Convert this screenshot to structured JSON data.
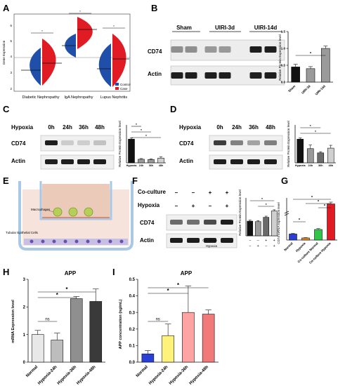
{
  "panels": {
    "A": {
      "letter": "A",
      "ylabel": "Gene Expression",
      "yticks": [
        "2",
        "3",
        "4",
        "5",
        "6"
      ],
      "groups": [
        "Diabetic Nephropathy",
        "IgA Nephropathy",
        "Lupus Nephritis"
      ],
      "legend": [
        "Control",
        "Case"
      ],
      "sig": "*",
      "colors": {
        "control": "#1f4fa8",
        "case": "#e01b24"
      }
    },
    "B": {
      "letter": "B",
      "lanes": [
        "Sham",
        "UIRI-3d",
        "UIRI-14d"
      ],
      "rows": [
        "CD74",
        "Actin"
      ],
      "ylabel": "Relative Protein Expression level",
      "yticks": [
        "0.0",
        "0.5",
        "1.0",
        "1.5"
      ],
      "sig": "*"
    },
    "C": {
      "letter": "C",
      "condition": "Hypoxia",
      "lanes": [
        "0h",
        "24h",
        "36h",
        "48h"
      ],
      "rows": [
        "CD74",
        "Actin"
      ],
      "ylabel": "Relative Protein Expression level",
      "sig": "*"
    },
    "D": {
      "letter": "D",
      "condition": "Hypoxia",
      "lanes": [
        "0h",
        "24h",
        "36h",
        "48h"
      ],
      "rows": [
        "CD74",
        "Actin"
      ],
      "ylabel": "Relative Protein Expression level",
      "sig": "*"
    },
    "E": {
      "letter": "E",
      "labels": [
        "Macrophages",
        "Tubular Epithelial Cells"
      ]
    },
    "F": {
      "letter": "F",
      "conditions": [
        "Co-culture",
        "Hypoxia"
      ],
      "coculture_signs": [
        "–",
        "–",
        "+",
        "+"
      ],
      "hypoxia_signs": [
        "–",
        "+",
        "–",
        "+"
      ],
      "rows": [
        "CD74",
        "Actin"
      ],
      "ylabel": "Relative Protein Expression level",
      "sig": "*"
    },
    "G": {
      "letter": "G",
      "ylabel": "CD74 mRNA expression level",
      "sig": "*"
    },
    "H": {
      "letter": "H",
      "title": "APP",
      "ylabel": "mRNA Expression level",
      "ns": "ns",
      "sig": "*"
    },
    "I": {
      "letter": "I",
      "title": "APP",
      "ylabel": "APP concentration (ng/mL)",
      "ns": "ns",
      "sig": "*"
    }
  },
  "chart_data": [
    {
      "id": "B",
      "type": "bar",
      "categories": [
        "Sham",
        "UIRI-3d",
        "UIRI-14d"
      ],
      "values": [
        0.45,
        0.4,
        1.0
      ],
      "errors": [
        0.08,
        0.06,
        0.07
      ],
      "ylim": [
        0,
        1.5
      ],
      "yticks": [
        0,
        0.5,
        1.0,
        1.5
      ],
      "colors": [
        "#111111",
        "#9a9a9a",
        "#9a9a9a"
      ]
    },
    {
      "id": "C",
      "type": "bar",
      "categories": [
        "Hypoxia",
        "24h",
        "36h",
        "48h"
      ],
      "values": [
        1.0,
        0.15,
        0.14,
        0.2
      ],
      "errors": [
        0.05,
        0.03,
        0.03,
        0.06
      ],
      "ylim": [
        0,
        1.6
      ],
      "colors": [
        "#111111",
        "#9a9a9a",
        "#9a9a9a",
        "#cfcfcf"
      ]
    },
    {
      "id": "D",
      "type": "bar",
      "categories": [
        "Hypoxia",
        "24h",
        "36h",
        "48h"
      ],
      "values": [
        1.0,
        0.6,
        0.42,
        0.62
      ],
      "errors": [
        0.05,
        0.15,
        0.05,
        0.12
      ],
      "ylim": [
        0,
        1.6
      ],
      "colors": [
        "#111111",
        "#9a9a9a",
        "#6b6b6b",
        "#cfcfcf"
      ]
    },
    {
      "id": "F",
      "type": "bar",
      "categories": [
        "1",
        "2",
        "3",
        "4"
      ],
      "values": [
        0.62,
        0.6,
        0.78,
        1.05
      ],
      "errors": [
        0.04,
        0.04,
        0.05,
        0.05
      ],
      "ylim": [
        0,
        1.6
      ],
      "colors": [
        "#111111",
        "#9a9a9a",
        "#6b6b6b",
        "#cfcfcf"
      ]
    },
    {
      "id": "G",
      "type": "bar",
      "categories": [
        "Normal",
        "Hypoxia",
        "Co-culture Normal",
        "Co-culture Hypoxia"
      ],
      "values": [
        1.0,
        0.35,
        1.75,
        6.0
      ],
      "errors": [
        0.1,
        0.05,
        0.15,
        0.3
      ],
      "ylim": [
        0,
        7
      ],
      "colors": [
        "#2b3fd6",
        "#f08a24",
        "#2fc64a",
        "#e01b24"
      ]
    },
    {
      "id": "H",
      "type": "bar",
      "categories": [
        "Normal",
        "Hypoxia-24h",
        "Hypoxia-36h",
        "Hypoxia-48h"
      ],
      "values": [
        1.0,
        0.8,
        2.3,
        2.2
      ],
      "errors": [
        0.15,
        0.25,
        0.08,
        0.45
      ],
      "ylim": [
        0,
        3
      ],
      "yticks": [
        0,
        1,
        2,
        3
      ],
      "colors": [
        "#e8e8e8",
        "#bdbdbd",
        "#8f8f8f",
        "#3a3a3a"
      ]
    },
    {
      "id": "I",
      "type": "bar",
      "categories": [
        "Normal",
        "Hypoxia-24h",
        "Hypoxia-36h",
        "Hypoxia-48h"
      ],
      "values": [
        0.05,
        0.16,
        0.3,
        0.29
      ],
      "errors": [
        0.02,
        0.07,
        0.16,
        0.025
      ],
      "ylim": [
        0,
        0.5
      ],
      "yticks": [
        0.0,
        0.1,
        0.2,
        0.3,
        0.4,
        0.5
      ],
      "colors": [
        "#2b3fd6",
        "#fff27a",
        "#ffa3a3",
        "#f07a7a"
      ]
    }
  ]
}
